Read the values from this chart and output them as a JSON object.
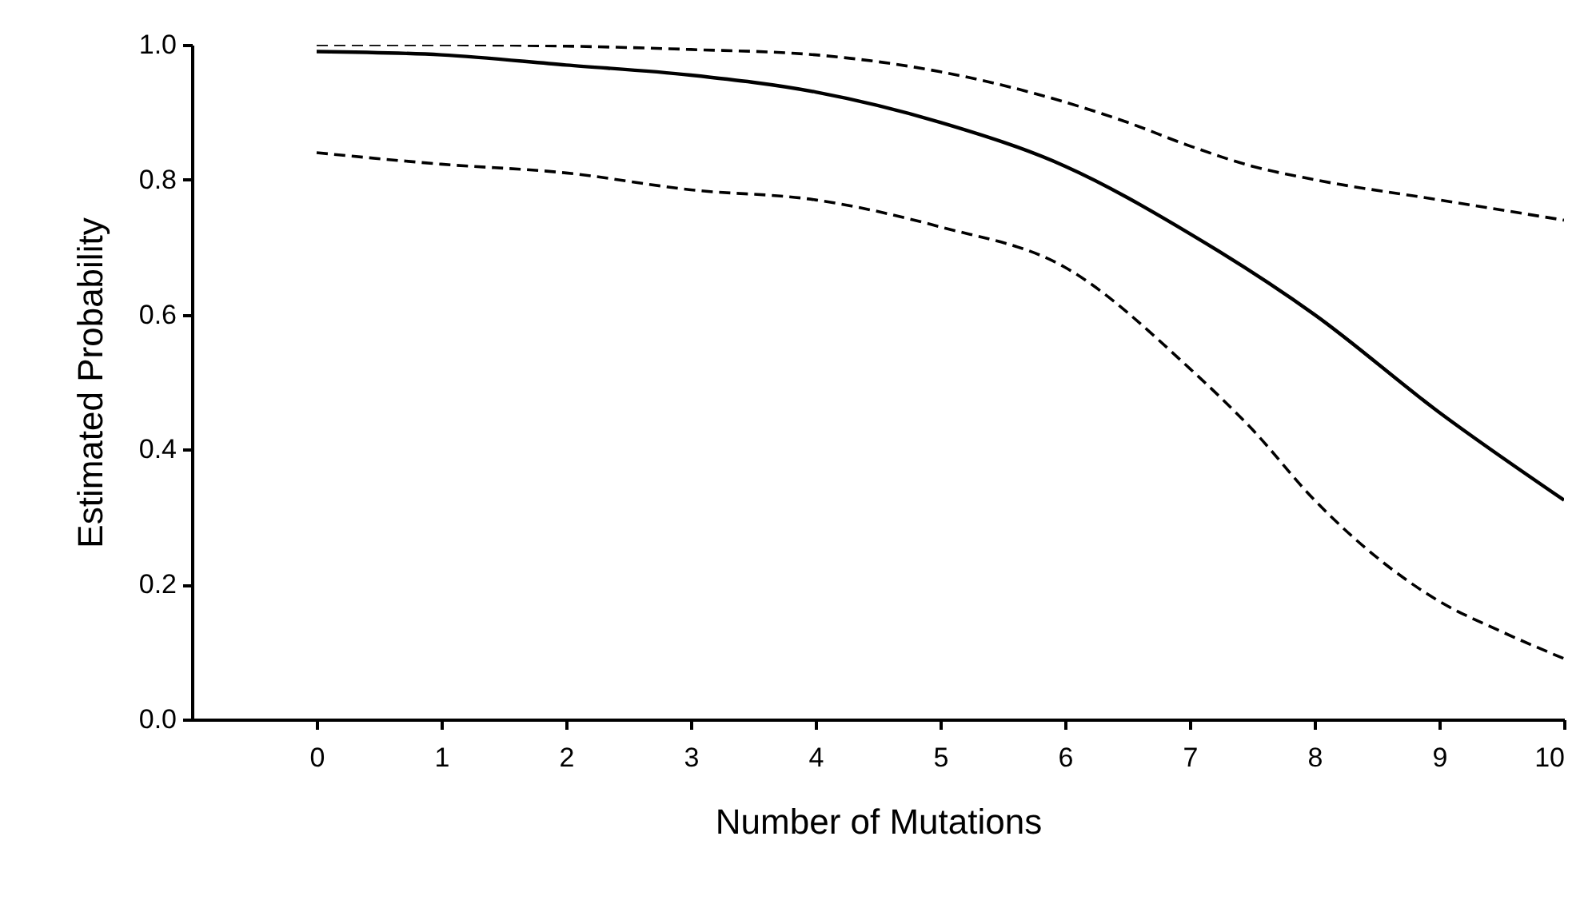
{
  "chart_data": {
    "type": "line",
    "xlabel": "Number of Mutations",
    "ylabel": "Estimated Probability",
    "xlim": [
      -1,
      10
    ],
    "ylim": [
      0,
      1
    ],
    "xticks": [
      0,
      1,
      2,
      3,
      4,
      5,
      6,
      7,
      8,
      9,
      10
    ],
    "yticks": [
      {
        "value": 0,
        "label": "0.0"
      },
      0.2,
      0.4,
      0.6,
      0.8,
      {
        "value": 1,
        "label": "1.0"
      }
    ],
    "grid": false,
    "marker": "none",
    "series": [
      {
        "color": "#000000",
        "line_style": "solid",
        "x": [
          0,
          1,
          2,
          3,
          4,
          5,
          6,
          7,
          8,
          9,
          10
        ],
        "values": [
          0.99,
          0.985,
          0.97,
          0.955,
          0.93,
          0.885,
          0.82,
          0.72,
          0.6,
          0.455,
          0.325
        ]
      },
      {
        "color": "#000000",
        "line_style": "dashed",
        "x": [
          0,
          1,
          2,
          3,
          4,
          5,
          6,
          6.5,
          7,
          7.5,
          8,
          9,
          10
        ],
        "values": [
          1.0,
          1.0,
          0.998,
          0.993,
          0.985,
          0.96,
          0.915,
          0.885,
          0.85,
          0.82,
          0.8,
          0.77,
          0.74
        ]
      },
      {
        "color": "#000000",
        "line_style": "dashed",
        "x": [
          0,
          1,
          2,
          3,
          4,
          5,
          6,
          7,
          7.5,
          8,
          8.5,
          9,
          9.5,
          10
        ],
        "values": [
          0.84,
          0.823,
          0.81,
          0.785,
          0.77,
          0.73,
          0.67,
          0.52,
          0.43,
          0.325,
          0.24,
          0.175,
          0.13,
          0.09
        ]
      }
    ]
  }
}
